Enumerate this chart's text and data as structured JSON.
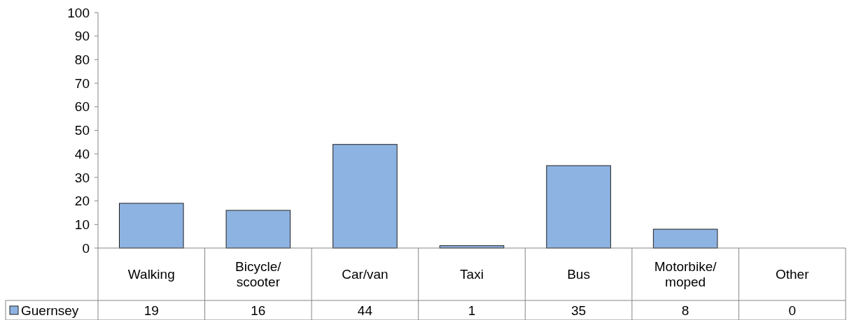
{
  "chart_data": {
    "type": "bar",
    "categories": [
      "Walking",
      "Bicycle/\nscooter",
      "Car/van",
      "Taxi",
      "Bus",
      "Motorbike/\nmoped",
      "Other"
    ],
    "series": [
      {
        "name": "Guernsey",
        "color": "#8db3e2",
        "values": [
          19,
          16,
          44,
          1,
          35,
          8,
          0
        ]
      }
    ],
    "ylim": [
      0,
      100
    ],
    "yticks": [
      0,
      10,
      20,
      30,
      40,
      50,
      60,
      70,
      80,
      90,
      100
    ],
    "grid": false,
    "legend": "bottom",
    "data_labels": true
  }
}
